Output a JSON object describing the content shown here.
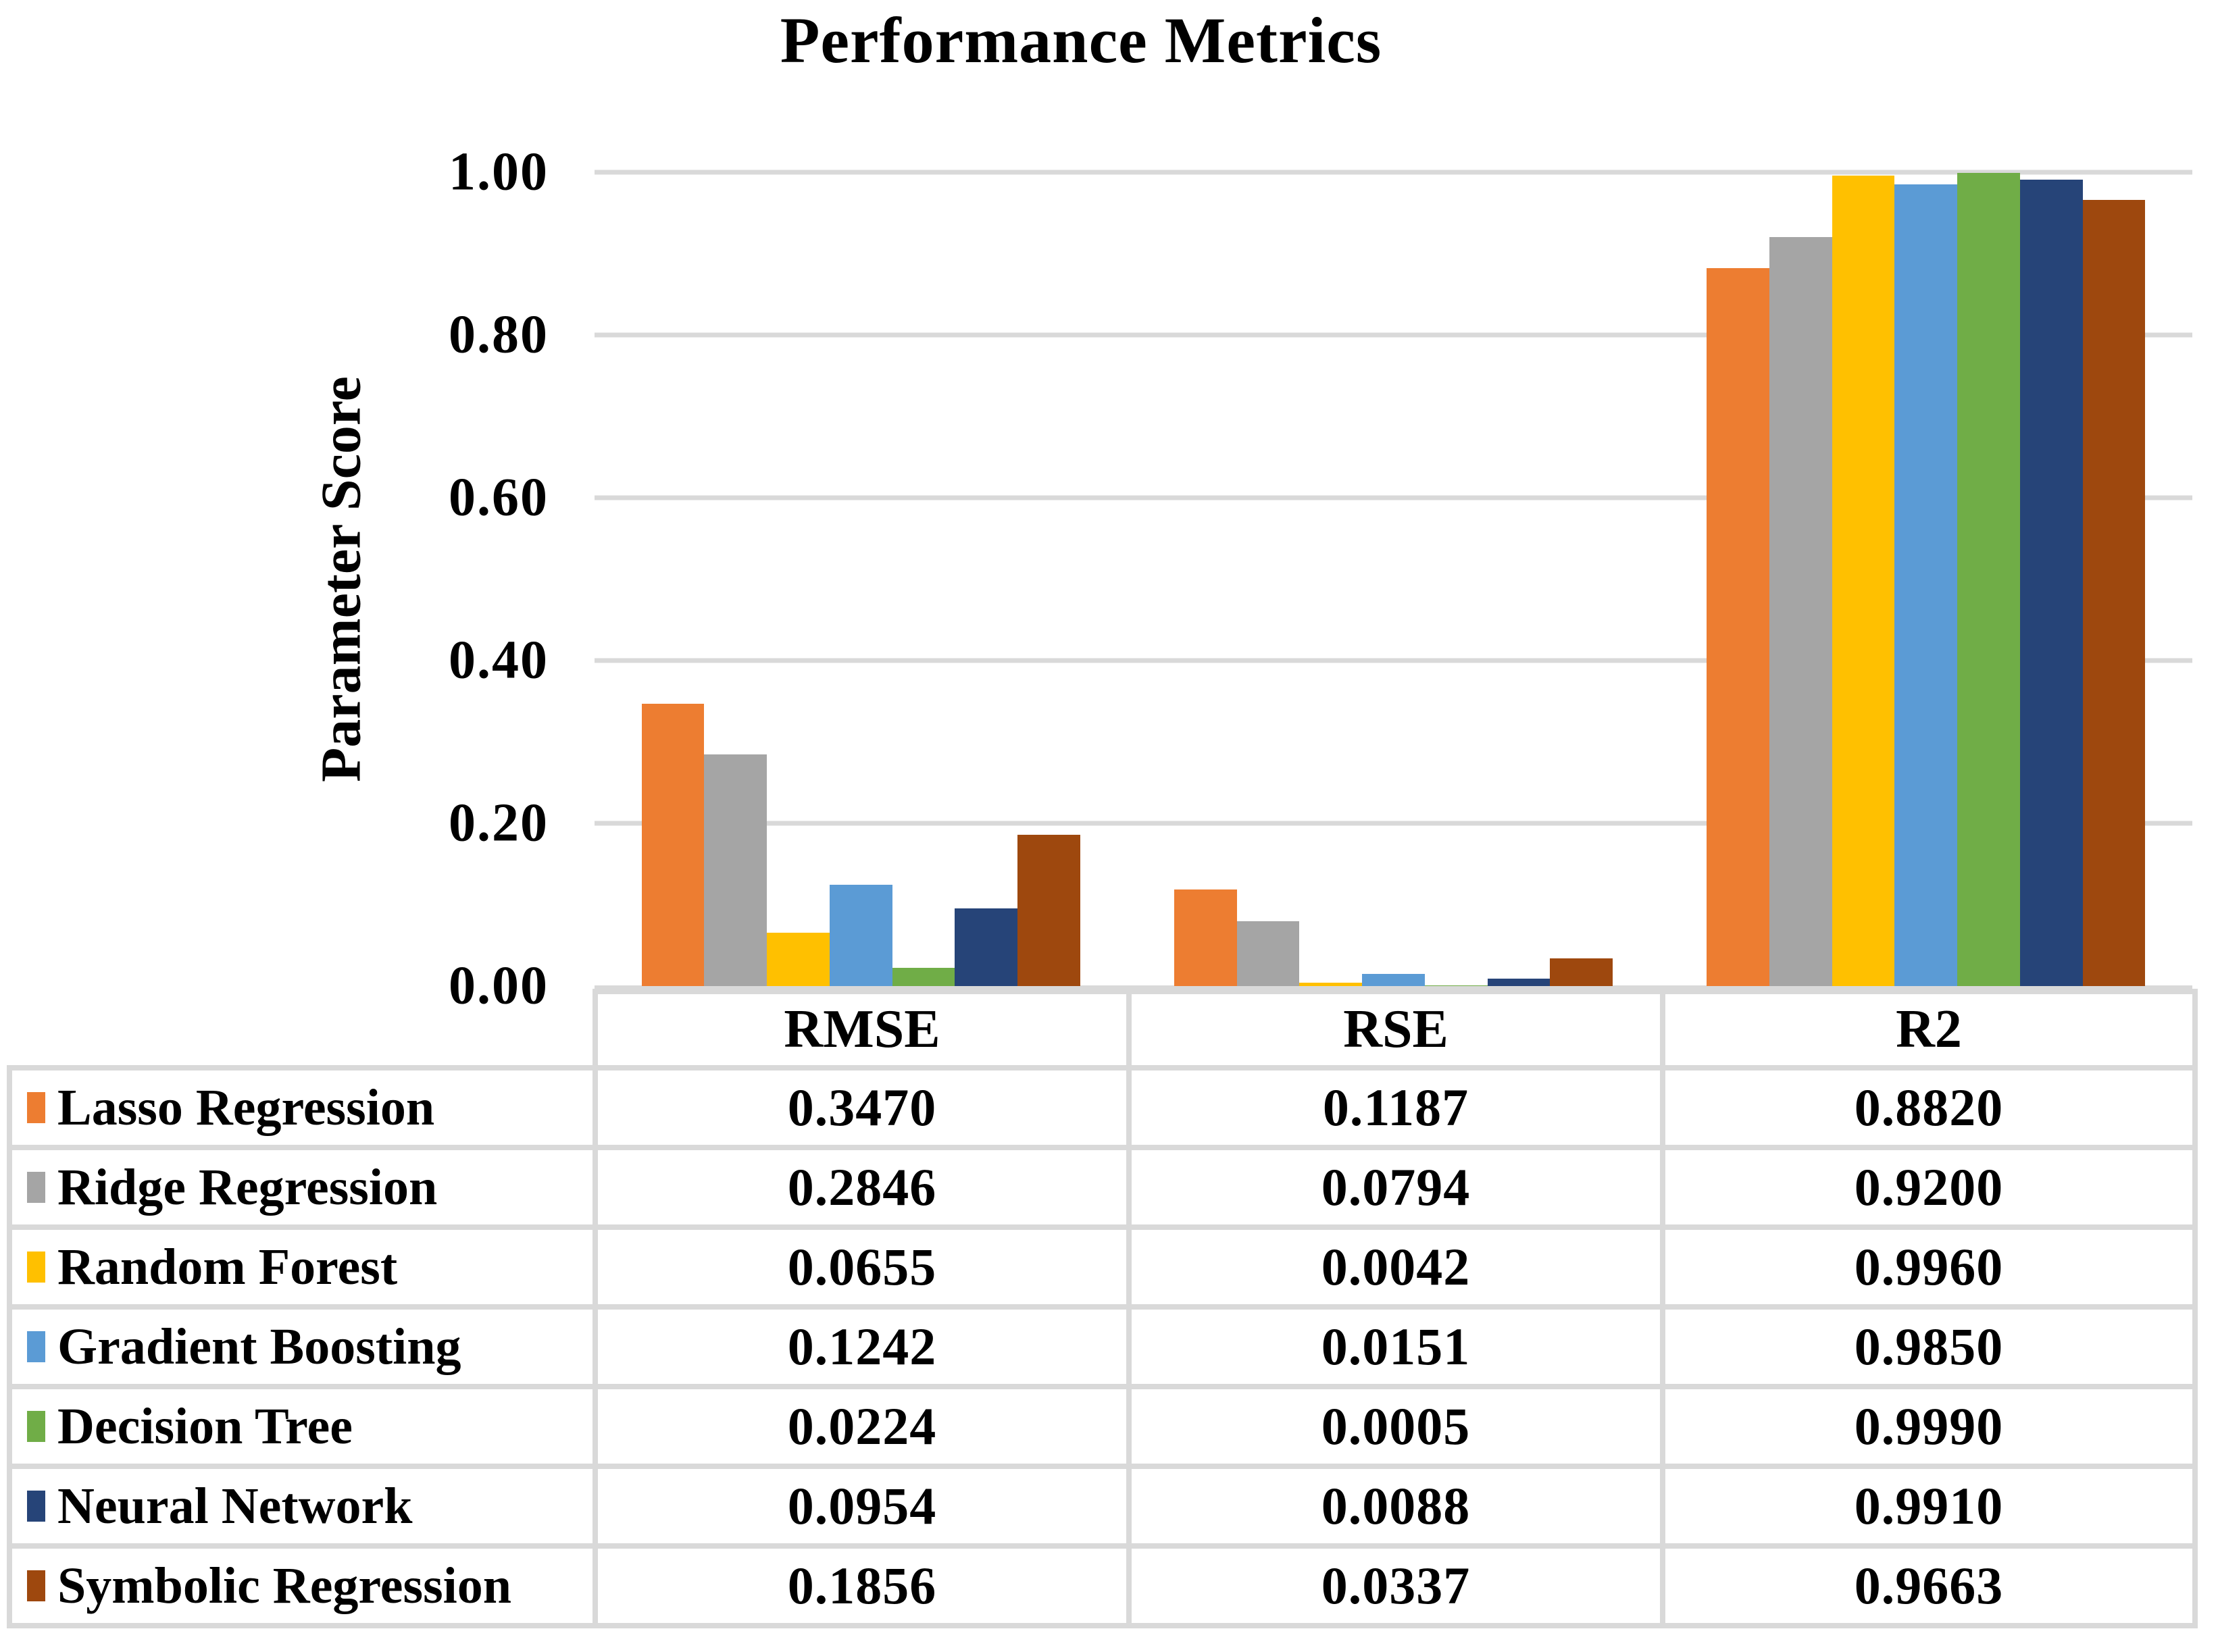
{
  "title": "Performance Metrics",
  "y_axis": {
    "title": "Parameter Score",
    "ticks": [
      "1.00",
      "0.80",
      "0.60",
      "0.40",
      "0.20",
      "0.00"
    ]
  },
  "chart_data": {
    "type": "bar",
    "title": "Performance Metrics",
    "xlabel": "",
    "ylabel": "Parameter Score",
    "ylim": [
      0,
      1.0
    ],
    "ytick_step": 0.2,
    "grid": true,
    "gridline_color": "#D9D9D9",
    "legend_position": "data-table-left",
    "categories": [
      "RMSE",
      "RSE",
      "R2"
    ],
    "series": [
      {
        "name": "Lasso Regression",
        "color": "#ED7D31",
        "values": [
          0.347,
          0.1187,
          0.882
        ]
      },
      {
        "name": "Ridge Regression",
        "color": "#A5A5A5",
        "values": [
          0.2846,
          0.0794,
          0.92
        ]
      },
      {
        "name": "Random Forest",
        "color": "#FFC000",
        "values": [
          0.0655,
          0.0042,
          0.996
        ]
      },
      {
        "name": "Gradient Boosting",
        "color": "#5B9BD5",
        "values": [
          0.1242,
          0.0151,
          0.985
        ]
      },
      {
        "name": "Decision Tree",
        "color": "#70AD47",
        "values": [
          0.0224,
          0.0005,
          0.999
        ]
      },
      {
        "name": "Neural Network",
        "color": "#264478",
        "values": [
          0.0954,
          0.0088,
          0.991
        ]
      },
      {
        "name": "Symbolic Regression",
        "color": "#9E480E",
        "values": [
          0.1856,
          0.0337,
          0.9663
        ]
      }
    ],
    "value_format_decimals": 4
  }
}
